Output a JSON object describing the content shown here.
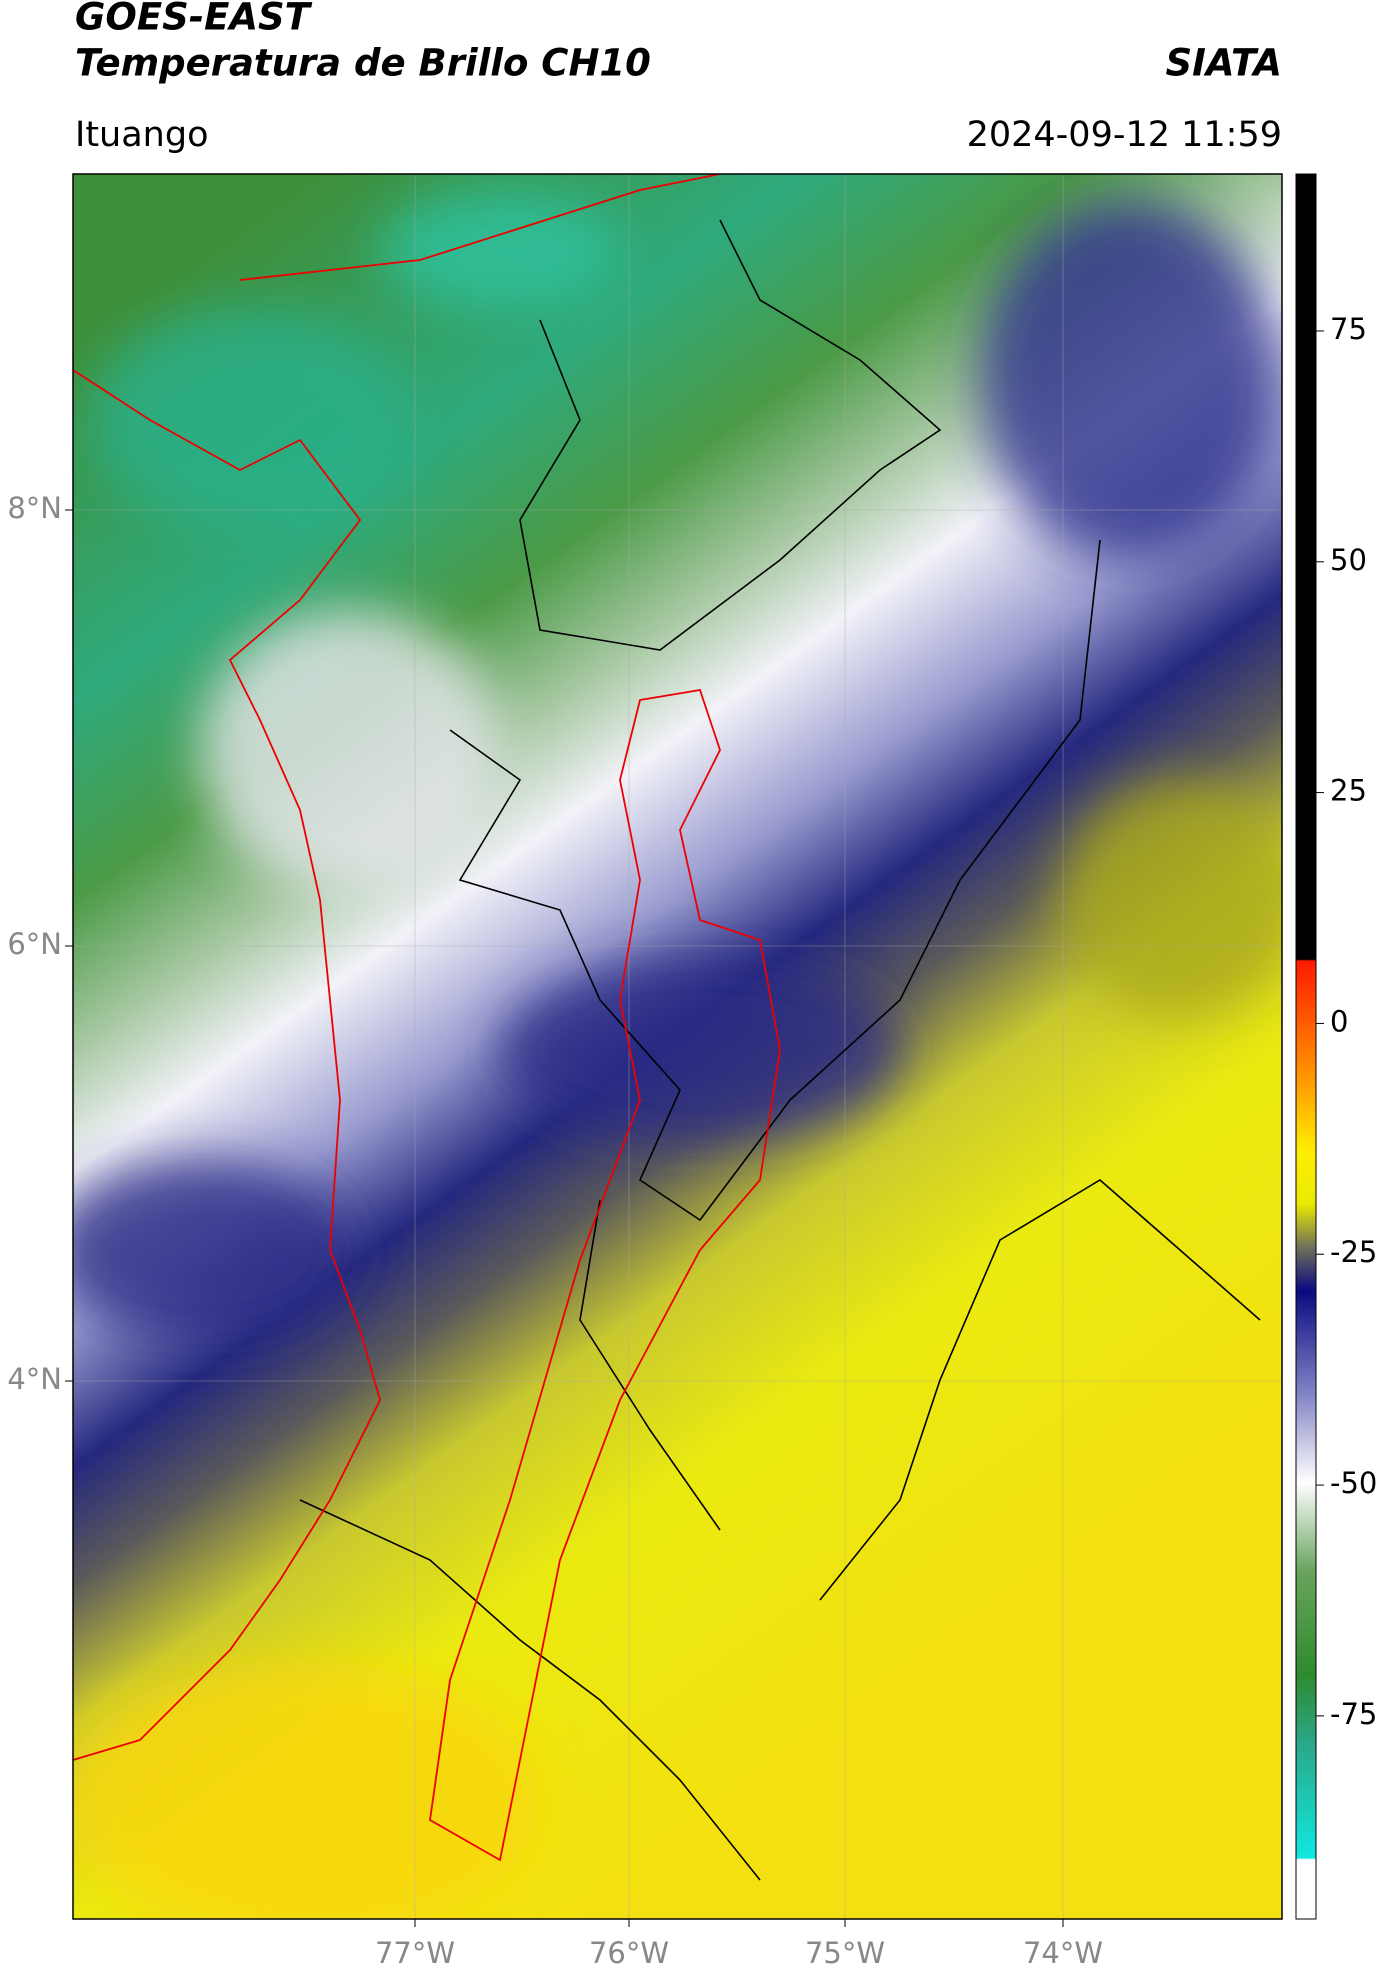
{
  "header": {
    "title_line1": "GOES-EAST",
    "title_line2": "Temperatura de Brillo CH10",
    "brand": "SIATA",
    "location": "Ituango",
    "datetime": "2024-09-12 11:59"
  },
  "map": {
    "lat_labels": [
      "8°N",
      "6°N",
      "4°N"
    ],
    "lon_labels": [
      "77°W",
      "76°W",
      "75°W",
      "74°W"
    ]
  },
  "colorbar": {
    "lim": [
      -97,
      92
    ],
    "ticks": [
      75,
      50,
      25,
      0,
      -25,
      -50,
      -75
    ]
  }
}
